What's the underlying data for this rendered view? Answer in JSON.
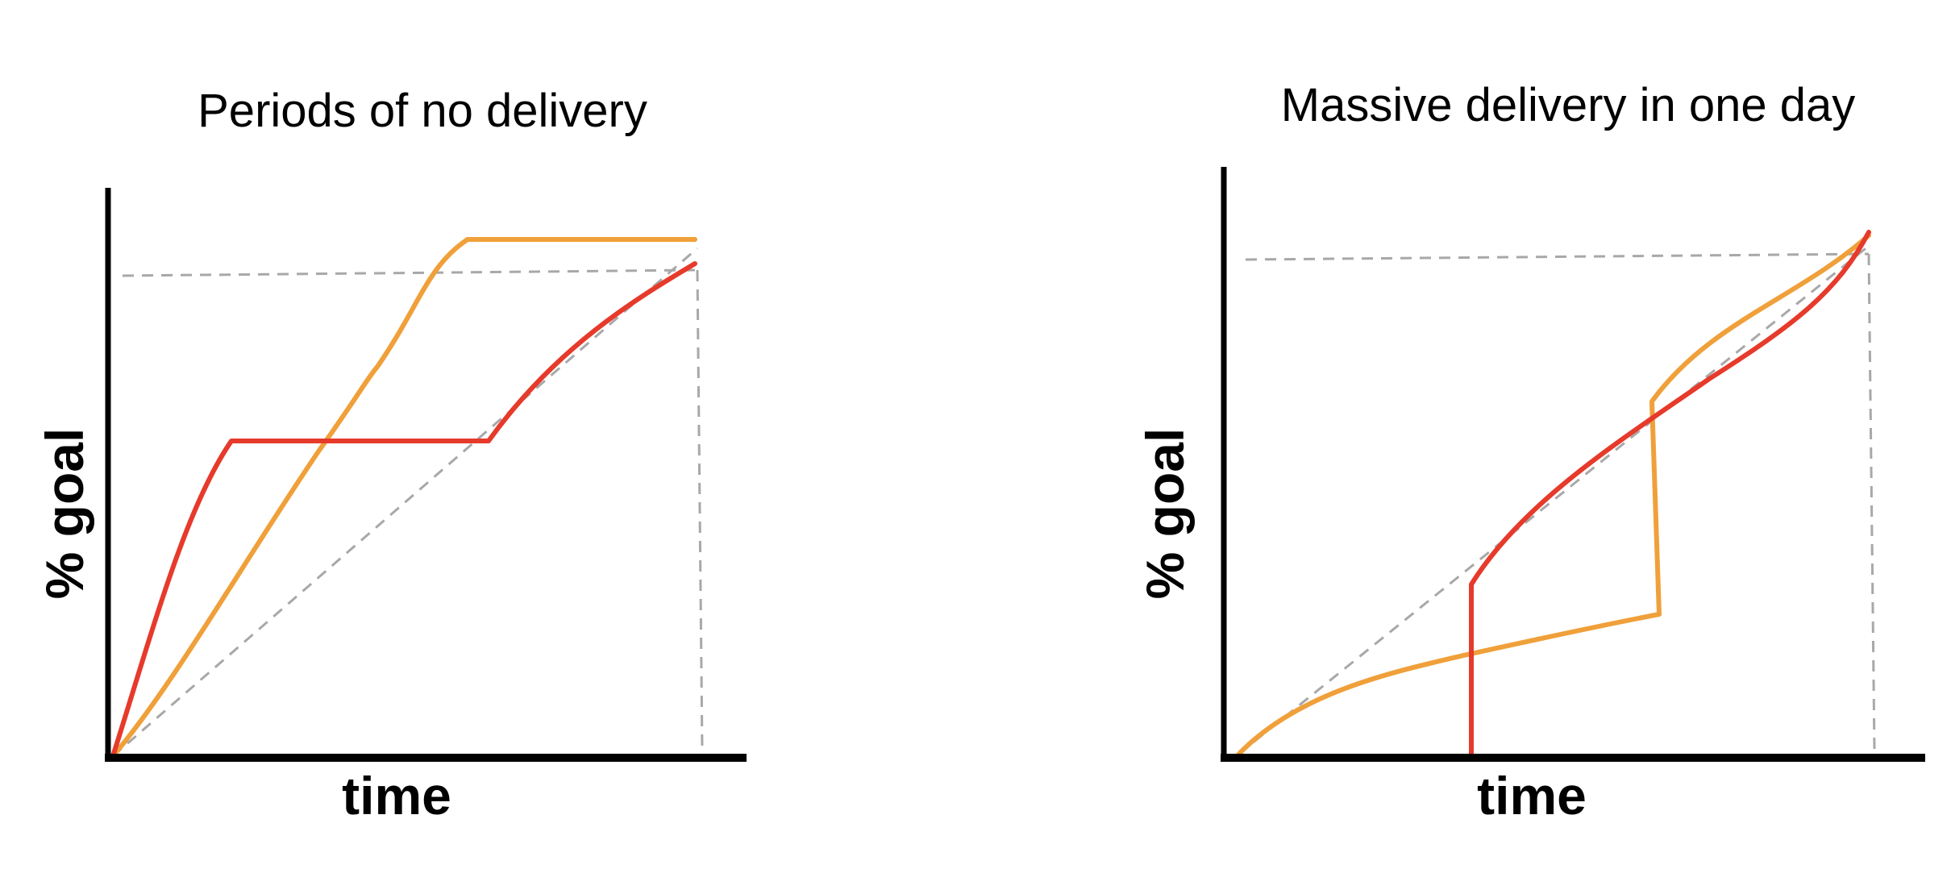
{
  "colors": {
    "red": "#e63a2b",
    "orange": "#f0a03a",
    "guide": "#a8a8a8",
    "axis": "#000000"
  },
  "panels": [
    {
      "title": "Periods of no delivery",
      "xlabel": "time",
      "ylabel": "% goal"
    },
    {
      "title": "Massive delivery in one day",
      "xlabel": "time",
      "ylabel": "% goal"
    }
  ]
}
